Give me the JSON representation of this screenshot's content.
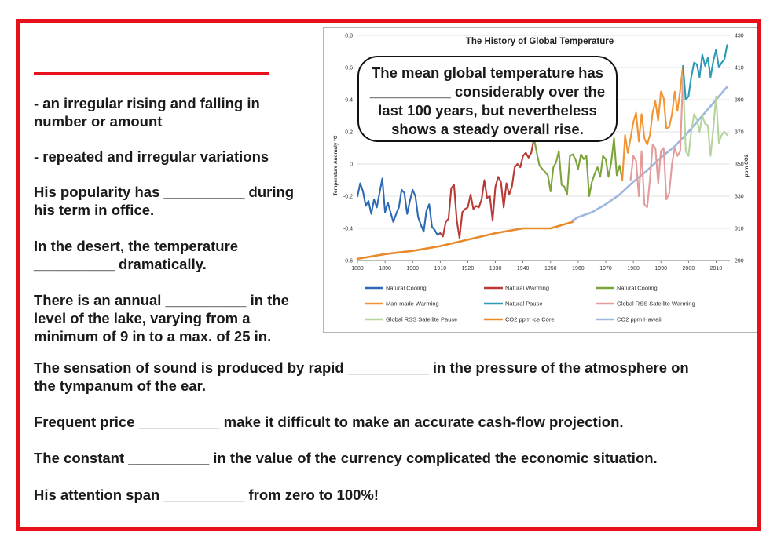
{
  "worksheet": {
    "lines": [
      "- an irregular rising and falling in\n   number or amount",
      "- repeated and irregular variations",
      "His popularity has __________ during\nhis term in office.",
      "In the desert, the temperature\n__________ dramatically.",
      "There is an annual __________ in the\nlevel of the lake, varying from a\nminimum of 9 in to a max. of 25 in.",
      "The sensation of sound is produced by rapid __________ in the pressure of the atmosphere on\nthe tympanum of the ear.",
      "Frequent price __________ make it difficult to make an accurate cash-flow projection.",
      "The constant __________ in the value of the currency complicated the economic situation.",
      "His attention span __________ from zero to 100%!"
    ],
    "callout": "The mean global temperature has\n__________ considerably over the\nlast 100 years, but nevertheless\nshows a steady overall rise."
  },
  "colors": {
    "border": "#e8101a",
    "natural_cooling": "#2e6ab4",
    "natural_warming": "#b83a36",
    "natural_cooling_2": "#7ba43b",
    "manmade_warming": "#f39433",
    "natural_pause": "#2d9ab6",
    "rss_warming": "#e39b9b",
    "rss_pause": "#b5d49e",
    "co2_ice": "#e8892a",
    "co2_hawaii": "#9db7dd"
  },
  "chart_data": {
    "type": "line",
    "title": "The History of Global Temperature",
    "ylabel": "Temperature Anomaly °C",
    "y2label": "ppm CO2",
    "xlim": [
      1880,
      2015
    ],
    "ylim": [
      -0.6,
      0.8
    ],
    "y2lim": [
      290,
      430
    ],
    "x_ticks": [
      "1880",
      "1890",
      "1900",
      "1910",
      "1920",
      "1930",
      "1940",
      "1950",
      "1960",
      "1970",
      "1980",
      "1990",
      "2000",
      "2010"
    ],
    "y_ticks": [
      "-0.6",
      "-0.4",
      "-0.2",
      "0",
      "0.2",
      "0.4",
      "0.6",
      "0.8"
    ],
    "y2_ticks": [
      "290",
      "310",
      "330",
      "350",
      "370",
      "390",
      "410",
      "430"
    ],
    "grid": true,
    "legend_position": "bottom",
    "series": [
      {
        "name": "Natural Cooling",
        "color": "#2e6ab4",
        "axis": "left",
        "x": [
          1880,
          1881,
          1882,
          1883,
          1884,
          1885,
          1886,
          1887,
          1888,
          1889,
          1890,
          1891,
          1892,
          1893,
          1894,
          1895,
          1896,
          1897,
          1898,
          1899,
          1900,
          1901,
          1902,
          1903,
          1904,
          1905,
          1906,
          1907,
          1908,
          1909,
          1910
        ],
        "y": [
          -0.2,
          -0.12,
          -0.17,
          -0.26,
          -0.23,
          -0.31,
          -0.22,
          -0.27,
          -0.18,
          -0.09,
          -0.3,
          -0.24,
          -0.3,
          -0.36,
          -0.31,
          -0.27,
          -0.16,
          -0.18,
          -0.31,
          -0.23,
          -0.16,
          -0.2,
          -0.33,
          -0.38,
          -0.42,
          -0.29,
          -0.25,
          -0.39,
          -0.41,
          -0.44,
          -0.43
        ]
      },
      {
        "name": "Natural Warming",
        "color": "#b83a36",
        "axis": "left",
        "x": [
          1910,
          1911,
          1912,
          1913,
          1914,
          1915,
          1916,
          1917,
          1918,
          1919,
          1920,
          1921,
          1922,
          1923,
          1924,
          1925,
          1926,
          1927,
          1928,
          1929,
          1930,
          1931,
          1932,
          1933,
          1934,
          1935,
          1936,
          1937,
          1938,
          1939,
          1940,
          1941,
          1942,
          1943,
          1944
        ],
        "y": [
          -0.43,
          -0.45,
          -0.36,
          -0.34,
          -0.15,
          -0.13,
          -0.35,
          -0.46,
          -0.3,
          -0.28,
          -0.27,
          -0.19,
          -0.28,
          -0.26,
          -0.27,
          -0.22,
          -0.1,
          -0.21,
          -0.2,
          -0.35,
          -0.14,
          -0.08,
          -0.11,
          -0.27,
          -0.12,
          -0.19,
          -0.14,
          -0.02,
          -0.0,
          -0.02,
          0.05,
          0.07,
          0.04,
          0.07,
          0.16
        ]
      },
      {
        "name": "Natural Cooling",
        "color": "#7ba43b",
        "axis": "left",
        "x": [
          1944,
          1945,
          1946,
          1947,
          1948,
          1949,
          1950,
          1951,
          1952,
          1953,
          1954,
          1955,
          1956,
          1957,
          1958,
          1959,
          1960,
          1961,
          1962,
          1963,
          1964,
          1965,
          1966,
          1967,
          1968,
          1969,
          1970,
          1971,
          1972,
          1973,
          1974,
          1975,
          1976
        ],
        "y": [
          0.16,
          0.07,
          -0.01,
          -0.03,
          -0.05,
          -0.07,
          -0.17,
          -0.02,
          0.01,
          0.08,
          -0.13,
          -0.14,
          -0.19,
          0.05,
          0.06,
          0.03,
          -0.03,
          0.06,
          0.03,
          0.05,
          -0.2,
          -0.11,
          -0.06,
          -0.02,
          -0.08,
          0.05,
          0.03,
          -0.08,
          0.01,
          0.16,
          -0.07,
          -0.01,
          -0.1
        ]
      },
      {
        "name": "Man-made Warming",
        "color": "#f39433",
        "axis": "left",
        "x": [
          1976,
          1977,
          1978,
          1979,
          1980,
          1981,
          1982,
          1983,
          1984,
          1985,
          1986,
          1987,
          1988,
          1989,
          1990,
          1991,
          1992,
          1993,
          1994,
          1995,
          1996,
          1997,
          1998
        ],
        "y": [
          -0.1,
          0.18,
          0.07,
          0.16,
          0.26,
          0.32,
          0.14,
          0.31,
          0.16,
          0.12,
          0.18,
          0.32,
          0.39,
          0.27,
          0.45,
          0.41,
          0.22,
          0.23,
          0.31,
          0.45,
          0.33,
          0.46,
          0.61
        ]
      },
      {
        "name": "Natural Pause",
        "color": "#2d9ab6",
        "axis": "left",
        "x": [
          1998,
          1999,
          2000,
          2001,
          2002,
          2003,
          2004,
          2005,
          2006,
          2007,
          2008,
          2009,
          2010,
          2011,
          2012,
          2013,
          2014
        ],
        "y": [
          0.61,
          0.4,
          0.42,
          0.54,
          0.63,
          0.62,
          0.54,
          0.68,
          0.61,
          0.66,
          0.54,
          0.64,
          0.71,
          0.6,
          0.63,
          0.65,
          0.74
        ]
      },
      {
        "name": "Global RSS Satellite Warming",
        "color": "#e39b9b",
        "axis": "left",
        "x": [
          1979,
          1980,
          1981,
          1982,
          1983,
          1984,
          1985,
          1986,
          1987,
          1988,
          1989,
          1990,
          1991,
          1992,
          1993,
          1994,
          1995,
          1996,
          1997,
          1998
        ],
        "y": [
          -0.1,
          0.05,
          0.02,
          -0.2,
          0.08,
          -0.25,
          -0.27,
          -0.1,
          0.12,
          0.1,
          -0.12,
          0.08,
          0.1,
          -0.22,
          -0.18,
          0.0,
          0.1,
          0.05,
          0.08,
          0.55
        ]
      },
      {
        "name": "Global RSS Satellite Pause",
        "color": "#b5d49e",
        "axis": "left",
        "x": [
          1998,
          1999,
          2000,
          2001,
          2002,
          2003,
          2004,
          2005,
          2006,
          2007,
          2008,
          2009,
          2010,
          2011,
          2012,
          2013,
          2014
        ],
        "y": [
          0.55,
          0.08,
          0.05,
          0.2,
          0.31,
          0.28,
          0.2,
          0.3,
          0.25,
          0.24,
          0.05,
          0.22,
          0.42,
          0.13,
          0.18,
          0.2,
          0.18
        ]
      },
      {
        "name": "CO2 ppm Ice Core",
        "color": "#e8892a",
        "axis": "right",
        "x": [
          1880,
          1890,
          1900,
          1910,
          1920,
          1930,
          1940,
          1950,
          1958
        ],
        "y": [
          291,
          294,
          296,
          299,
          303,
          307,
          310,
          310,
          314
        ]
      },
      {
        "name": "CO2 ppm Hawaii",
        "color": "#9db7dd",
        "axis": "right",
        "x": [
          1958,
          1960,
          1965,
          1970,
          1975,
          1980,
          1985,
          1990,
          1995,
          2000,
          2005,
          2010,
          2014
        ],
        "y": [
          315,
          317,
          320,
          325,
          331,
          339,
          346,
          354,
          361,
          370,
          380,
          390,
          398
        ]
      }
    ]
  }
}
